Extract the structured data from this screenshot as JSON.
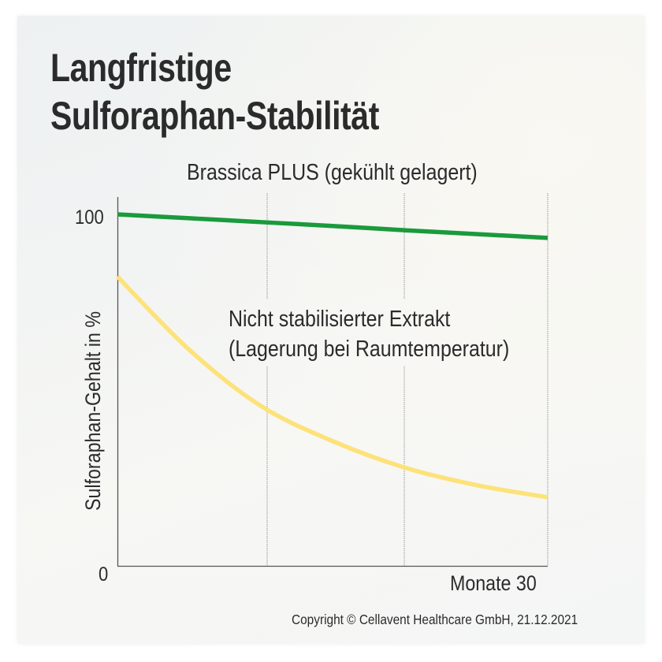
{
  "title": {
    "line1": "Langfristige",
    "line2": "Sulforaphan-Stabilität"
  },
  "labels": {
    "green_series": "Brassica PLUS (gekühlt gelagert)",
    "yellow_series_line1": "Nicht stabilisierter Extrakt",
    "yellow_series_line2": "(Lagerung bei Raumtemperatur)",
    "y_axis": "Sulforaphan-Gehalt in %",
    "x_axis": "Monate  30",
    "y_tick_top": "100",
    "y_tick_bottom": "0"
  },
  "footer": {
    "copyright": "Copyright © Cellavent Healthcare GmbH, 21.12.2021"
  },
  "colors": {
    "green": "#1a9a3c",
    "yellow": "#fde27a",
    "axis": "#555555",
    "grid": "#9a9a9a",
    "text": "#2b2b2b"
  },
  "chart_data": {
    "type": "line",
    "title": "Langfristige Sulforaphan-Stabilität",
    "xlabel": "Monate",
    "ylabel": "Sulforaphan-Gehalt in %",
    "x": [
      0,
      5,
      10,
      15,
      20,
      25,
      30
    ],
    "xlim": [
      0,
      30
    ],
    "ylim": [
      0,
      100
    ],
    "x_ticks_labeled": [
      30
    ],
    "y_ticks_labeled": [
      0,
      100
    ],
    "vertical_gridlines_at": [
      10,
      20,
      30
    ],
    "grid": true,
    "series": [
      {
        "name": "Brassica PLUS (gekühlt gelagert)",
        "color": "#1a9a3c",
        "values": [
          100,
          98.9,
          97.8,
          96.7,
          95.5,
          94.4,
          93.3
        ]
      },
      {
        "name": "Nicht stabilisierter Extrakt (Lagerung bei Raumtemperatur)",
        "color": "#fde27a",
        "values": [
          82.3,
          61.5,
          45.5,
          35.5,
          28.0,
          23.0,
          19.5
        ]
      }
    ],
    "legend": "inline labels"
  }
}
